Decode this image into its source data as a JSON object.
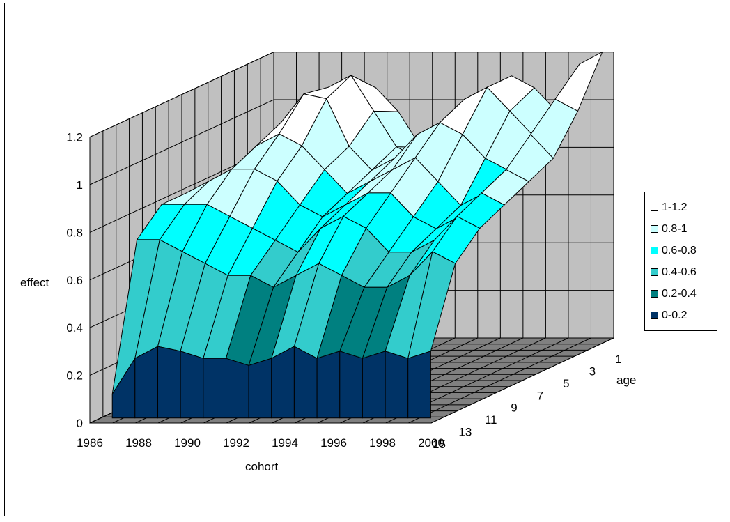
{
  "chart_data": {
    "type": "surface",
    "title": "",
    "xlabel": "cohort",
    "ylabel": "effect",
    "zlabel": "age",
    "zlim": [
      0,
      1.2
    ],
    "z_ticks": [
      "0",
      "0.2",
      "0.4",
      "0.6",
      "0.8",
      "1",
      "1.2"
    ],
    "cohort_ticks": [
      "1986",
      "1988",
      "1990",
      "1992",
      "1994",
      "1996",
      "1998",
      "2000"
    ],
    "age_ticks": [
      "1",
      "3",
      "5",
      "7",
      "9",
      "11",
      "13",
      "15"
    ],
    "cohorts": [
      1986,
      1987,
      1988,
      1989,
      1990,
      1991,
      1992,
      1993,
      1994,
      1995,
      1996,
      1997,
      1998,
      1999,
      2000
    ],
    "ages": [
      1,
      3,
      5,
      7,
      9,
      11,
      13,
      15
    ],
    "series": [
      {
        "age": 1,
        "values": [
          0.55,
          0.7,
          0.85,
          1.0,
          1.05,
          0.95,
          0.8,
          0.75,
          0.85,
          1.0,
          1.1,
          1.05,
          0.95,
          1.15,
          1.2
        ]
      },
      {
        "age": 3,
        "values": [
          0.6,
          0.75,
          0.95,
          1.1,
          1.15,
          1.0,
          0.85,
          0.8,
          0.9,
          1.05,
          1.1,
          1.0,
          0.9,
          1.05,
          1.0
        ]
      },
      {
        "age": 5,
        "values": [
          0.7,
          0.8,
          1.0,
          1.12,
          1.1,
          0.9,
          0.8,
          0.85,
          0.95,
          1.0,
          0.95,
          0.85,
          0.8,
          0.95,
          0.85
        ]
      },
      {
        "age": 7,
        "values": [
          0.75,
          0.85,
          0.95,
          1.0,
          0.95,
          0.85,
          0.75,
          0.8,
          0.85,
          0.9,
          0.8,
          0.7,
          0.75,
          0.85,
          0.8
        ]
      },
      {
        "age": 9,
        "values": [
          0.8,
          0.85,
          0.9,
          0.9,
          0.85,
          0.75,
          0.7,
          0.75,
          0.8,
          0.8,
          0.7,
          0.65,
          0.7,
          0.8,
          0.75
        ]
      },
      {
        "age": 11,
        "values": [
          0.8,
          0.8,
          0.8,
          0.75,
          0.7,
          0.65,
          0.6,
          0.7,
          0.75,
          0.7,
          0.6,
          0.6,
          0.65,
          0.75,
          0.7
        ]
      },
      {
        "age": 13,
        "values": [
          0.7,
          0.7,
          0.65,
          0.6,
          0.55,
          0.55,
          0.5,
          0.55,
          0.6,
          0.55,
          0.5,
          0.5,
          0.55,
          0.65,
          0.6
        ]
      },
      {
        "age": 15,
        "values": [
          0.1,
          0.25,
          0.3,
          0.28,
          0.25,
          0.25,
          0.22,
          0.25,
          0.3,
          0.25,
          0.28,
          0.25,
          0.28,
          0.25,
          0.28
        ]
      }
    ],
    "legend": {
      "position": "right",
      "items": [
        {
          "label": "1-1.2",
          "color": "#FFFFFF"
        },
        {
          "label": "0.8-1",
          "color": "#CCFFFF"
        },
        {
          "label": "0.6-0.8",
          "color": "#00FFFF"
        },
        {
          "label": "0.4-0.6",
          "color": "#33CCCC"
        },
        {
          "label": "0.2-0.4",
          "color": "#008080"
        },
        {
          "label": "0-0.2",
          "color": "#003366"
        }
      ]
    },
    "grid": true,
    "colors": {
      "wall": "#C0C0C0",
      "floor": "#808080",
      "gridline": "#000000"
    }
  }
}
